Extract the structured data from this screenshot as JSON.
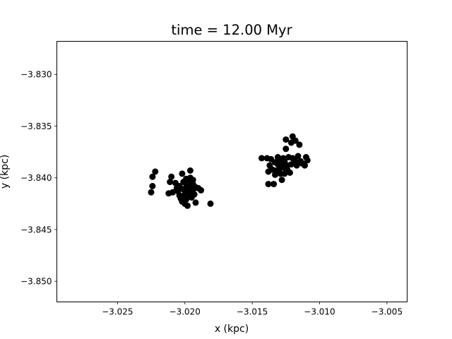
{
  "chart_data": {
    "type": "scatter",
    "title": "time = 12.00 Myr",
    "xlabel": "x (kpc)",
    "ylabel": "y (kpc)",
    "xlim": [
      -3.0295,
      -3.0035
    ],
    "ylim": [
      -3.852,
      -3.8268
    ],
    "xticks": [
      -3.025,
      -3.02,
      -3.015,
      -3.01,
      -3.005
    ],
    "xtick_labels": [
      "−3.025",
      "−3.020",
      "−3.015",
      "−3.010",
      "−3.005"
    ],
    "yticks": [
      -3.83,
      -3.835,
      -3.84,
      -3.845,
      -3.85
    ],
    "ytick_labels": [
      "−3.830",
      "−3.835",
      "−3.840",
      "−3.845",
      "−3.850"
    ],
    "grid": false,
    "marker_color": "#000000",
    "series": [
      {
        "points": [
          [
            -3.0225,
            -3.8414
          ],
          [
            -3.0224,
            -3.8408
          ],
          [
            -3.0224,
            -3.8399
          ],
          [
            -3.0222,
            -3.8394
          ],
          [
            -3.0212,
            -3.8415
          ],
          [
            -3.0211,
            -3.8404
          ],
          [
            -3.021,
            -3.8399
          ],
          [
            -3.0209,
            -3.8414
          ],
          [
            -3.0207,
            -3.8405
          ],
          [
            -3.0206,
            -3.841
          ],
          [
            -3.0205,
            -3.8413
          ],
          [
            -3.0204,
            -3.8417
          ],
          [
            -3.0204,
            -3.8408
          ],
          [
            -3.0203,
            -3.842
          ],
          [
            -3.0202,
            -3.8423
          ],
          [
            -3.0202,
            -3.8396
          ],
          [
            -3.0201,
            -3.8411
          ],
          [
            -3.0201,
            -3.8404
          ],
          [
            -3.02,
            -3.8416
          ],
          [
            -3.02,
            -3.8425
          ],
          [
            -3.0199,
            -3.8421
          ],
          [
            -3.0199,
            -3.8409
          ],
          [
            -3.0199,
            -3.8401
          ],
          [
            -3.0198,
            -3.8427
          ],
          [
            -3.0198,
            -3.8414
          ],
          [
            -3.0198,
            -3.8418
          ],
          [
            -3.0197,
            -3.8405
          ],
          [
            -3.0197,
            -3.8412
          ],
          [
            -3.0196,
            -3.8409
          ],
          [
            -3.0196,
            -3.84
          ],
          [
            -3.0196,
            -3.8393
          ],
          [
            -3.0195,
            -3.8416
          ],
          [
            -3.0195,
            -3.8419
          ],
          [
            -3.0194,
            -3.8412
          ],
          [
            -3.0194,
            -3.8402
          ],
          [
            -3.0194,
            -3.8406
          ],
          [
            -3.0193,
            -3.8416
          ],
          [
            -3.0192,
            -3.8409
          ],
          [
            -3.0192,
            -3.8424
          ],
          [
            -3.019,
            -3.841
          ],
          [
            -3.0188,
            -3.8412
          ],
          [
            -3.0181,
            -3.8425
          ],
          [
            -3.0143,
            -3.8381
          ],
          [
            -3.0139,
            -3.8381
          ],
          [
            -3.0138,
            -3.8394
          ],
          [
            -3.0138,
            -3.8406
          ],
          [
            -3.0137,
            -3.8388
          ],
          [
            -3.0136,
            -3.8382
          ],
          [
            -3.0135,
            -3.8392
          ],
          [
            -3.0134,
            -3.8406
          ],
          [
            -3.0133,
            -3.8397
          ],
          [
            -3.0133,
            -3.8385
          ],
          [
            -3.0132,
            -3.8393
          ],
          [
            -3.0131,
            -3.838
          ],
          [
            -3.0131,
            -3.8387
          ],
          [
            -3.013,
            -3.8392
          ],
          [
            -3.0129,
            -3.8396
          ],
          [
            -3.0129,
            -3.8383
          ],
          [
            -3.0128,
            -3.8388
          ],
          [
            -3.0128,
            -3.8402
          ],
          [
            -3.0127,
            -3.8381
          ],
          [
            -3.0127,
            -3.839
          ],
          [
            -3.0126,
            -3.8384
          ],
          [
            -3.0126,
            -3.8396
          ],
          [
            -3.0125,
            -3.8372
          ],
          [
            -3.0125,
            -3.8363
          ],
          [
            -3.0124,
            -3.8388
          ],
          [
            -3.0124,
            -3.8392
          ],
          [
            -3.0123,
            -3.838
          ],
          [
            -3.0122,
            -3.8395
          ],
          [
            -3.0121,
            -3.8387
          ],
          [
            -3.0121,
            -3.8366
          ],
          [
            -3.012,
            -3.8381
          ],
          [
            -3.012,
            -3.836
          ],
          [
            -3.0118,
            -3.8384
          ],
          [
            -3.0118,
            -3.8364
          ],
          [
            -3.0117,
            -3.8388
          ],
          [
            -3.0116,
            -3.8379
          ],
          [
            -3.0115,
            -3.8368
          ],
          [
            -3.0114,
            -3.8384
          ],
          [
            -3.0113,
            -3.8386
          ],
          [
            -3.0111,
            -3.8388
          ],
          [
            -3.011,
            -3.838
          ],
          [
            -3.0109,
            -3.8383
          ]
        ]
      }
    ]
  }
}
